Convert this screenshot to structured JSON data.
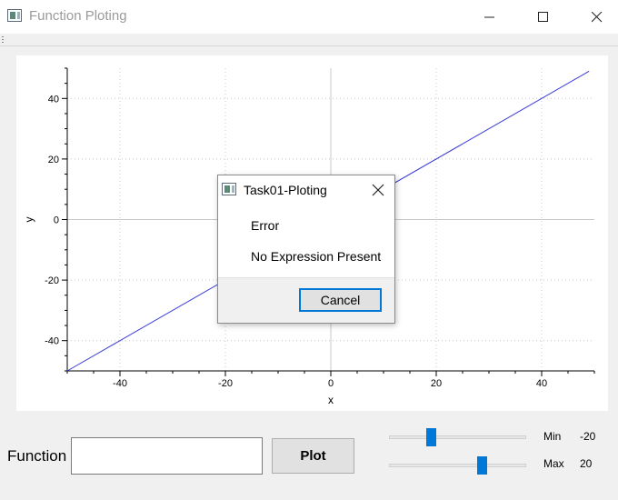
{
  "window": {
    "title": "Function Ploting",
    "icon": "app-window-icon",
    "controls": [
      "minimize-icon",
      "maximize-icon",
      "close-icon"
    ]
  },
  "chart_data": {
    "type": "line",
    "title": "",
    "xlabel": "x",
    "ylabel": "y",
    "xlim": [
      -50,
      50
    ],
    "ylim": [
      -50,
      50
    ],
    "x_ticks": [
      -40,
      -20,
      0,
      20,
      40
    ],
    "y_ticks": [
      40,
      20,
      0,
      -20,
      -40
    ],
    "grid": true,
    "series": [
      {
        "color": "#3a3ad6",
        "x": [
          -50,
          49
        ],
        "y": [
          -50,
          49
        ]
      }
    ]
  },
  "controls": {
    "function_label": "Function",
    "function_value": "",
    "plot_label": "Plot",
    "min_label": "Min",
    "min_value": "-20",
    "max_label": "Max",
    "max_value": "20",
    "accent_color": "#0078d7"
  },
  "dialog": {
    "title": "Task01-Ploting",
    "heading": "Error",
    "message": "No Expression Present",
    "cancel_label": "Cancel"
  }
}
